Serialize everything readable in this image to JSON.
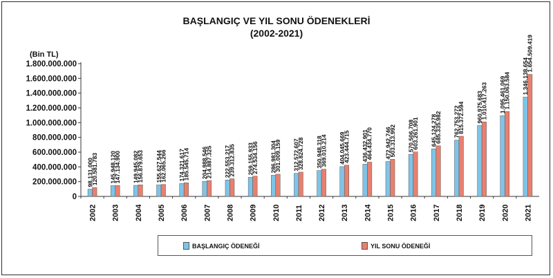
{
  "chart_data": {
    "type": "bar",
    "title": "BAŞLANGIÇ VE YIL SONU ÖDENEKLERİ",
    "subtitle": "(2002-2021)",
    "ylabel": "(Bin TL)",
    "ylim": [
      0,
      1800000000
    ],
    "yticks": [
      0,
      200000000,
      400000000,
      600000000,
      800000000,
      1000000000,
      1200000000,
      1400000000,
      1600000000,
      1800000000
    ],
    "ytick_labels": [
      "0",
      "200.000.000",
      "400.000.000",
      "600.000.000",
      "800.000.000",
      "1.000.000.000",
      "1.200.000.000",
      "1.400.000.000",
      "1.600.000.000",
      "1.800.000.000"
    ],
    "categories": [
      "2002",
      "2003",
      "2004",
      "2005",
      "2006",
      "2007",
      "2008",
      "2009",
      "2010",
      "2011",
      "2012",
      "2013",
      "2014",
      "2015",
      "2016",
      "2017",
      "2018",
      "2019",
      "2020",
      "2021"
    ],
    "legend_position": "bottom",
    "grid": false,
    "series": [
      {
        "name": "BAŞLANGIÇ ÖDENEĞİ",
        "color": "#7fc4e8",
        "values": [
          98131000,
          145948120,
          149945082,
          155627544,
          174321617,
          204988546,
          222553217,
          259155933,
          286981304,
          312572607,
          350948318,
          404045669,
          436432901,
          472942746,
          570506708,
          645124278,
          762753272,
          960975683,
          1095461069,
          1346138654
        ],
        "labels": [
          "98.131.000",
          "145.948.120",
          "149.945.082",
          "155.627.544",
          "174.321.617",
          "204.988.546",
          "222.553.217",
          "259.155.933",
          "286.981.304",
          "312.572.607",
          "350.948.318",
          "404.045.669",
          "436.432.901",
          "472.942.746",
          "570.506.708",
          "645.124.278",
          "762.753.272",
          "960.975.683",
          "1.095.461.069",
          "1.346.138.654"
        ]
      },
      {
        "name": "YIL SONU ÖDENEĞİ",
        "color": "#e8806e",
        "values": [
          120581783,
          147134900,
          156879653,
          162065266,
          185545714,
          214887325,
          239312835,
          274534156,
          301009159,
          328824728,
          369010214,
          423444715,
          464434770,
          503313992,
          603261901,
          685335982,
          815372594,
          1010417263,
          1150063584,
          1654509419
        ],
        "labels": [
          "120.581.783",
          "147.134.900",
          "156.879.653",
          "162.065.266",
          "185.545.714",
          "214.887.325",
          "239.312.835",
          "274.534.156",
          "301.009.159",
          "328.824.728",
          "369.010.214",
          "423.444.715",
          "464.434.770",
          "503.313.992",
          "603.261.901",
          "685.335.982",
          "815.372.594",
          "1.010.417.263",
          "1.150.063.584",
          "1.654.509.419"
        ]
      }
    ]
  }
}
